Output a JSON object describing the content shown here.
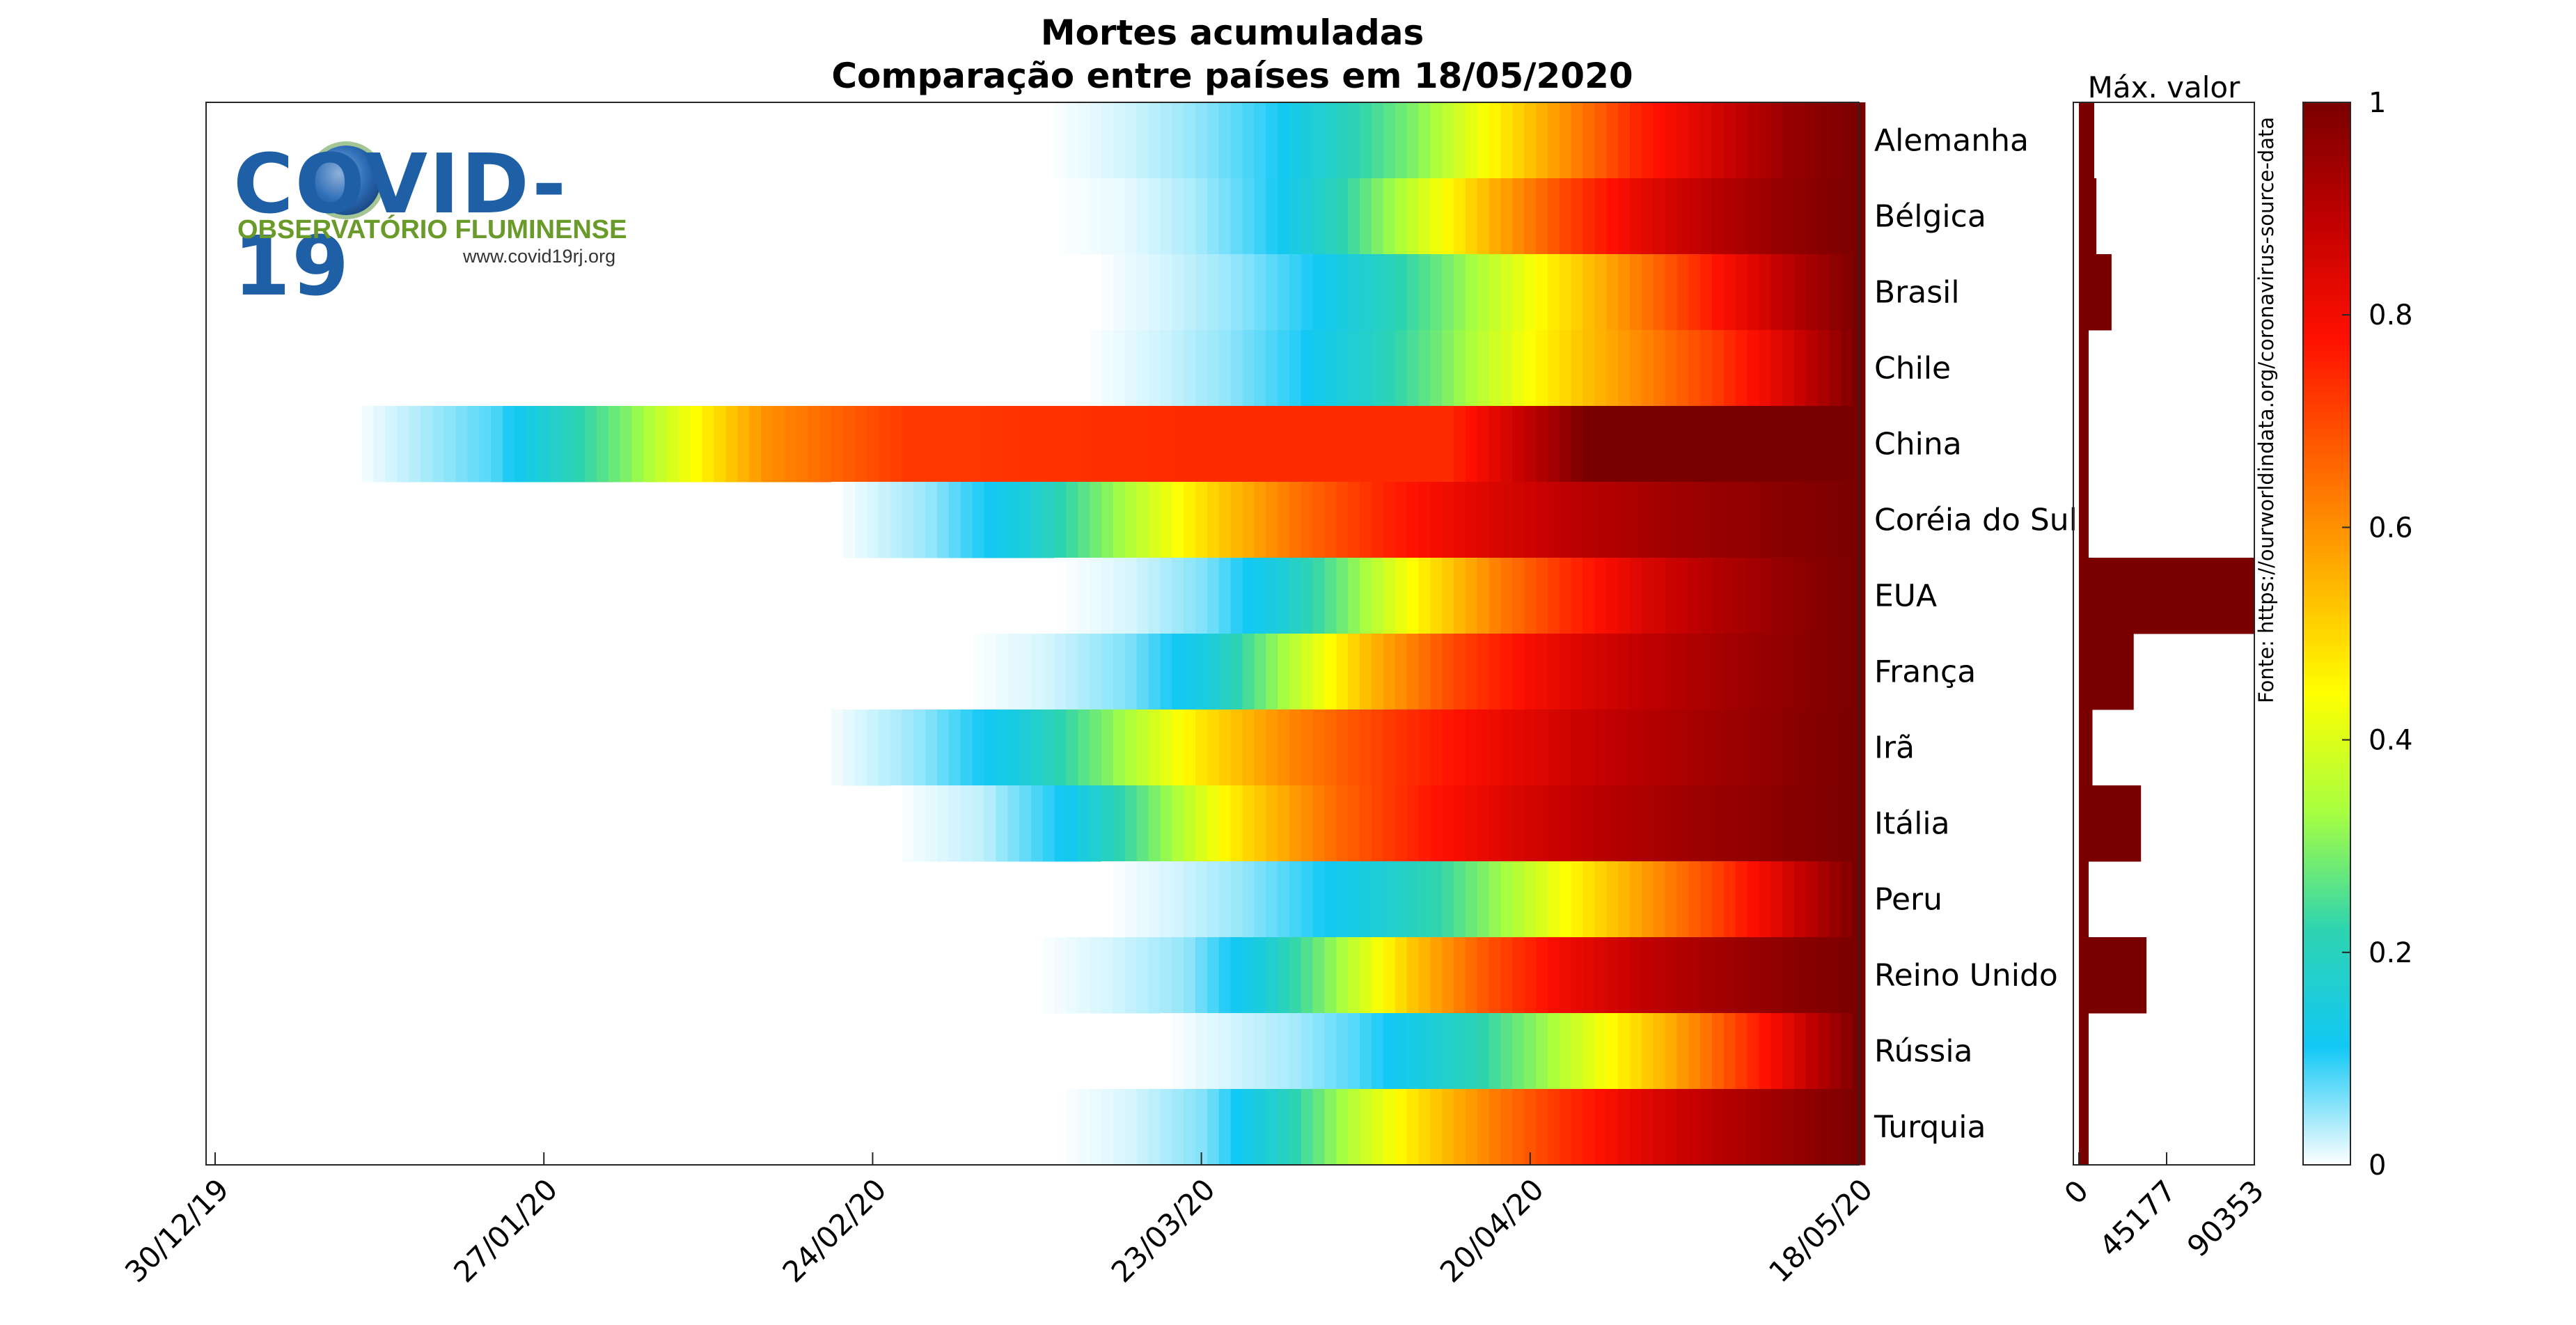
{
  "title_line1": "Mortes acumuladas",
  "title_line2": "Comparação entre países em 18/05/2020",
  "max_label": "Máx. valor",
  "source": "Fonte: https://ourworldindata.org/coronavirus-source-data",
  "logo": {
    "word": "COVID-19",
    "subtitle": "OBSERVATÓRIO FLUMINENSE",
    "url": "www.covid19rj.org"
  },
  "colors": {
    "stops": [
      "#ffffff",
      "#12c8f5",
      "#2ed4b0",
      "#a8ff40",
      "#ffff00",
      "#ffb000",
      "#ff6000",
      "#ff1000",
      "#c00000",
      "#7a0000"
    ],
    "bar": "#7a0000"
  },
  "chart_data": [
    {
      "type": "heatmap",
      "title": "Mortes acumuladas\nComparação entre países em 18/05/2020",
      "x_tick_labels": [
        "30/12/19",
        "27/01/20",
        "24/02/20",
        "23/03/20",
        "20/04/20",
        "18/05/20"
      ],
      "x_range": [
        "2019-12-30",
        "2020-05-18"
      ],
      "categories": [
        "Alemanha",
        "Bélgica",
        "Brasil",
        "Chile",
        "China",
        "Coréia do Sul",
        "EUA",
        "França",
        "Irã",
        "Itália",
        "Peru",
        "Reino Unido",
        "Rússia",
        "Turquia"
      ],
      "first_death_date": [
        "2020-03-10",
        "2020-03-10",
        "2020-03-14",
        "2020-03-13",
        "2020-01-11",
        "2020-02-21",
        "2020-03-11",
        "2020-03-03",
        "2020-02-20",
        "2020-02-26",
        "2020-03-15",
        "2020-03-09",
        "2020-03-20",
        "2020-03-11"
      ],
      "profile": [
        [
          0.0,
          0.02,
          0.05,
          0.1,
          0.2,
          0.3,
          0.45,
          0.6,
          0.75,
          0.85,
          0.95,
          1.0
        ],
        [
          0.0,
          0.01,
          0.04,
          0.1,
          0.22,
          0.38,
          0.55,
          0.7,
          0.82,
          0.9,
          0.96,
          1.0
        ],
        [
          0.0,
          0.02,
          0.05,
          0.1,
          0.18,
          0.28,
          0.4,
          0.52,
          0.65,
          0.78,
          0.9,
          1.0
        ],
        [
          0.0,
          0.02,
          0.05,
          0.1,
          0.18,
          0.28,
          0.4,
          0.52,
          0.62,
          0.72,
          0.85,
          1.0
        ],
        [
          0.0,
          0.08,
          0.3,
          0.6,
          0.72,
          0.73,
          0.74,
          0.74,
          0.74,
          1.0,
          1.0,
          1.0
        ],
        [
          0.0,
          0.05,
          0.15,
          0.32,
          0.5,
          0.65,
          0.76,
          0.84,
          0.9,
          0.94,
          0.97,
          1.0
        ],
        [
          0.0,
          0.02,
          0.06,
          0.15,
          0.3,
          0.47,
          0.62,
          0.74,
          0.84,
          0.91,
          0.96,
          1.0
        ],
        [
          0.0,
          0.02,
          0.06,
          0.15,
          0.35,
          0.55,
          0.7,
          0.8,
          0.87,
          0.92,
          0.96,
          1.0
        ],
        [
          0.0,
          0.05,
          0.14,
          0.3,
          0.48,
          0.62,
          0.72,
          0.8,
          0.87,
          0.92,
          0.96,
          1.0
        ],
        [
          0.0,
          0.03,
          0.12,
          0.3,
          0.5,
          0.65,
          0.76,
          0.84,
          0.9,
          0.94,
          0.97,
          1.0
        ],
        [
          0.0,
          0.02,
          0.05,
          0.1,
          0.16,
          0.24,
          0.35,
          0.48,
          0.6,
          0.72,
          0.86,
          1.0
        ],
        [
          0.0,
          0.02,
          0.05,
          0.15,
          0.32,
          0.52,
          0.68,
          0.8,
          0.88,
          0.93,
          0.97,
          1.0
        ],
        [
          0.0,
          0.02,
          0.04,
          0.08,
          0.14,
          0.22,
          0.32,
          0.44,
          0.56,
          0.7,
          0.85,
          1.0
        ],
        [
          0.0,
          0.02,
          0.06,
          0.18,
          0.35,
          0.5,
          0.63,
          0.74,
          0.83,
          0.9,
          0.95,
          1.0
        ]
      ],
      "colorbar": {
        "ticks": [
          0,
          0.2,
          0.4,
          0.6,
          0.8,
          1
        ]
      }
    },
    {
      "type": "bar",
      "title": "Máx. valor",
      "orientation": "horizontal",
      "categories": [
        "Alemanha",
        "Bélgica",
        "Brasil",
        "Chile",
        "China",
        "Coréia do Sul",
        "EUA",
        "França",
        "Irã",
        "Itália",
        "Peru",
        "Reino Unido",
        "Rússia",
        "Turquia"
      ],
      "values": [
        7900,
        9000,
        16800,
        3700,
        4600,
        263,
        90353,
        28200,
        7000,
        32000,
        2500,
        34800,
        2600,
        4200
      ],
      "xlim": [
        0,
        90353
      ],
      "x_ticks": [
        0,
        45177,
        90353
      ]
    }
  ]
}
